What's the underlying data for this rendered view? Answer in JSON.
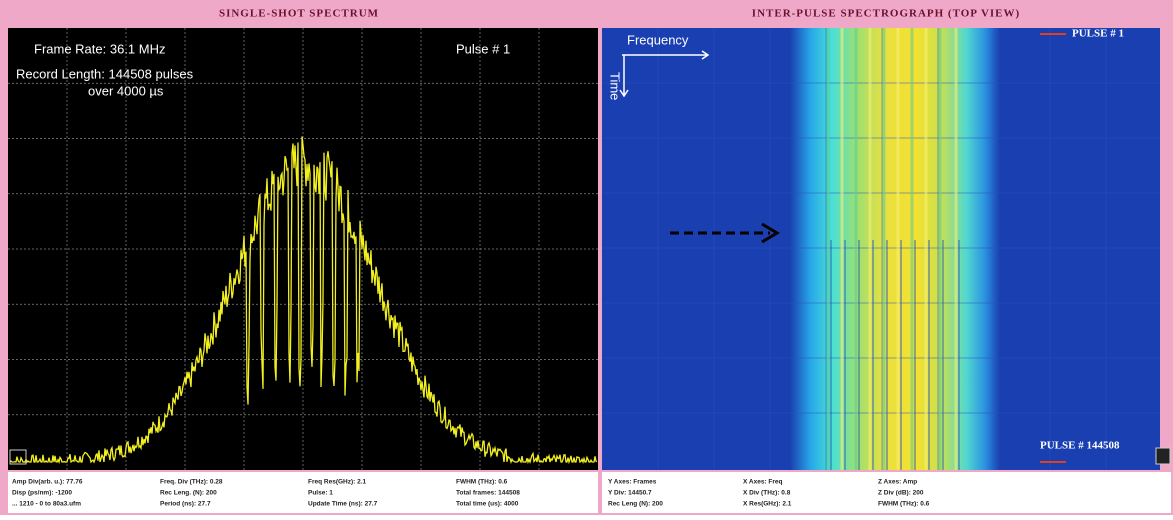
{
  "left_panel": {
    "title": "SINGLE-SHOT SPECTRUM",
    "overlay": {
      "frame_rate": "Frame Rate: 36.1 MHz",
      "record_length": "Record Length: 144508 pulses",
      "duration": "over 4000 µs",
      "pulse": "Pulse # 1"
    },
    "status": [
      [
        "Amp Div(arb. u.): 77.76",
        "Disp (ps/nm): -1200",
        "... 1210 - 0 to 80a3.ufm"
      ],
      [
        "Freq. Div (THz): 0.28",
        "Rec Leng. (N): 200",
        "Period (ns): 27.7"
      ],
      [
        "Freq Res(GHz): 2.1",
        "Pulse: 1",
        "Update Time (ns): 27.7"
      ],
      [
        "FWHM (THz): 0.6",
        "Total frames: 144508",
        "Total time (us): 4000"
      ]
    ]
  },
  "right_panel": {
    "title": "INTER-PULSE SPECTROGRAPH (TOP VIEW)",
    "overlay": {
      "x_axis": "Frequency",
      "y_axis": "Time",
      "first_pulse": "PULSE # 1",
      "last_pulse": "PULSE # 144508"
    },
    "status": [
      [
        "Y Axes: Frames",
        "Y Div: 14450.7",
        "Rec Leng (N): 200"
      ],
      [
        "X Axes: Freq",
        "X Div (THz): 0.8",
        "X Res(GHz): 2.1"
      ],
      [
        "Z Axes: Amp",
        "Z Div (dB): 200",
        "FWHM (THz): 0.6"
      ]
    ]
  }
}
